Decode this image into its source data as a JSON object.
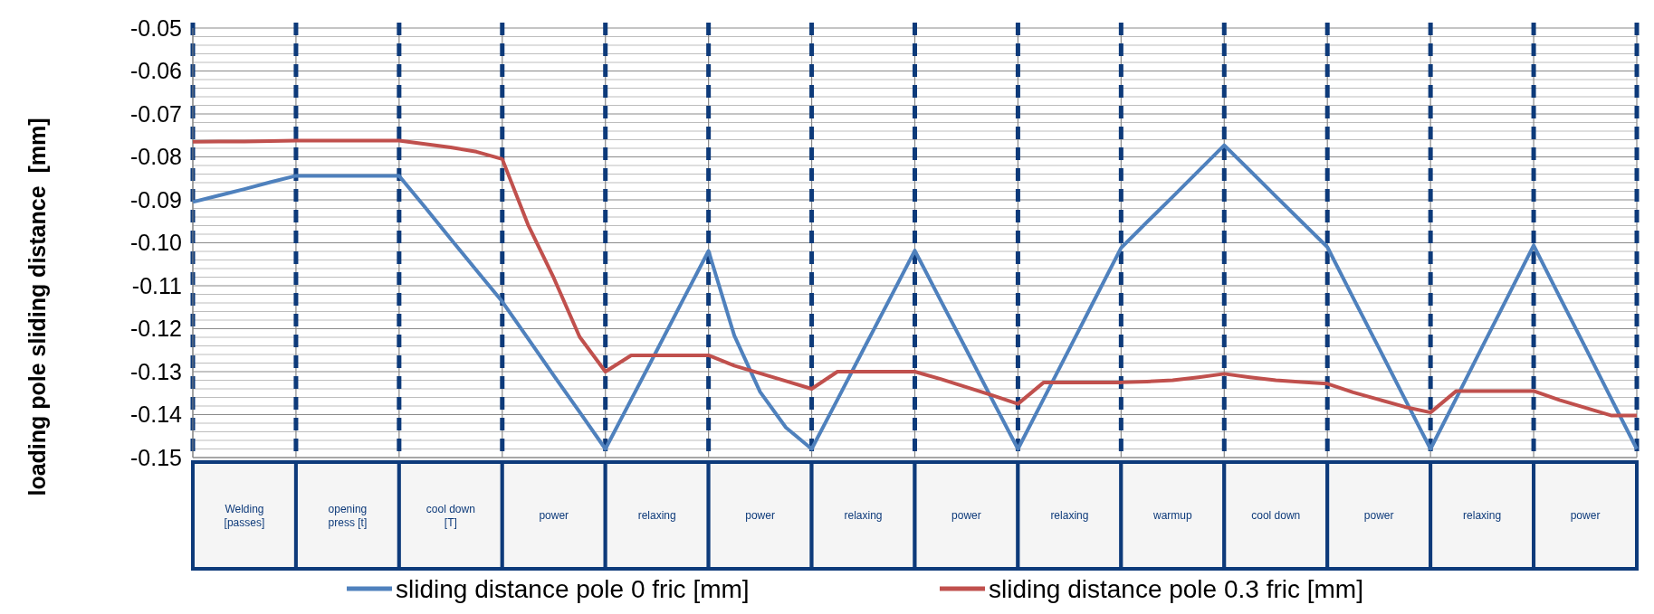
{
  "chart_data": {
    "type": "line",
    "ylabel": "loading pole sliding distance  [mm]",
    "categories": [
      null,
      null,
      "Welding [passes]",
      null,
      null,
      null,
      "opening press [t]",
      null,
      null,
      null,
      "cool down [T]",
      null,
      null,
      null,
      "power",
      null,
      null,
      null,
      "relaxing",
      null,
      null,
      null,
      "power",
      null,
      null,
      null,
      "relaxing",
      null,
      null,
      null,
      "power",
      null,
      null,
      null,
      "relaxing",
      null,
      null,
      null,
      "warmup",
      null,
      null,
      null,
      "cool down",
      null,
      null,
      null,
      "power",
      null,
      null,
      null,
      "relaxing",
      null,
      null,
      null,
      "power",
      null,
      null
    ],
    "ylim": [
      -0.15,
      -0.05
    ],
    "yticks": [
      {
        "value": -0.15,
        "label": "-0.15"
      },
      {
        "value": -0.14,
        "label": "-0.14"
      },
      {
        "value": -0.13,
        "label": "-0.13"
      },
      {
        "value": -0.12,
        "label": "-0.12"
      },
      {
        "value": -0.11,
        "label": "-0.11"
      },
      {
        "value": -0.1,
        "label": "-0.10"
      },
      {
        "value": -0.09,
        "label": "-0.09"
      },
      {
        "value": -0.08,
        "label": "-0.08"
      },
      {
        "value": -0.07,
        "label": "-0.07"
      },
      {
        "value": -0.06,
        "label": "-0.06"
      },
      {
        "value": -0.05,
        "label": "-0.05"
      }
    ],
    "grid": true,
    "legend": "bottom",
    "line_style": "solid",
    "marker": "none",
    "series": [
      {
        "name": "sliding distance pole 0 fric [mm]",
        "color": "#4f81bd",
        "values": [
          -0.0905,
          -0.089,
          -0.0875,
          -0.0859,
          -0.0844,
          -0.0844,
          -0.0844,
          -0.0844,
          -0.0844,
          -0.0917,
          -0.0991,
          -0.1064,
          -0.1137,
          -0.1223,
          -0.1309,
          -0.1394,
          -0.148,
          -0.1365,
          -0.125,
          -0.1134,
          -0.1019,
          -0.1216,
          -0.1347,
          -0.143,
          -0.148,
          -0.1365,
          -0.1249,
          -0.1134,
          -0.1018,
          -0.1134,
          -0.1249,
          -0.1365,
          -0.148,
          -0.1363,
          -0.1246,
          -0.1129,
          -0.1012,
          -0.0952,
          -0.0893,
          -0.0833,
          -0.0773,
          -0.0832,
          -0.0892,
          -0.0951,
          -0.101,
          -0.1128,
          -0.1245,
          -0.1363,
          -0.148,
          -0.1362,
          -0.1243,
          -0.1125,
          -0.1006,
          -0.1125,
          -0.1243,
          -0.1362,
          -0.148
        ]
      },
      {
        "name": "sliding distance pole 0.3 fric [mm]",
        "color": "#c0504d",
        "values": [
          -0.0765,
          -0.0764,
          -0.0764,
          -0.0763,
          -0.0762,
          -0.0762,
          -0.0762,
          -0.0762,
          -0.0762,
          -0.077,
          -0.0778,
          -0.0788,
          -0.0805,
          -0.0958,
          -0.1082,
          -0.1219,
          -0.13,
          -0.1262,
          -0.1262,
          -0.1262,
          -0.1262,
          -0.1286,
          -0.1304,
          -0.1322,
          -0.134,
          -0.13,
          -0.13,
          -0.13,
          -0.13,
          -0.1317,
          -0.1336,
          -0.1355,
          -0.1375,
          -0.1325,
          -0.1325,
          -0.1325,
          -0.1325,
          -0.1323,
          -0.132,
          -0.1313,
          -0.1305,
          -0.1313,
          -0.132,
          -0.1324,
          -0.1328,
          -0.1348,
          -0.1365,
          -0.1382,
          -0.1395,
          -0.1345,
          -0.1345,
          -0.1345,
          -0.1345,
          -0.1366,
          -0.1384,
          -0.1402,
          -0.1402
        ]
      }
    ]
  }
}
